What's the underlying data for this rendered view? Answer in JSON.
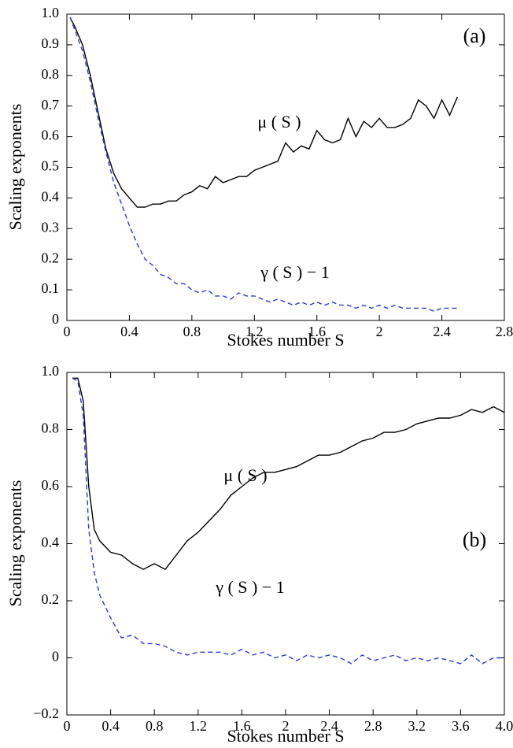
{
  "chart_data": [
    {
      "type": "line",
      "panel_label": "(a)",
      "xlabel": "Stokes number S",
      "ylabel": "Scaling exponents",
      "xlim": [
        0,
        2.8
      ],
      "ylim": [
        0,
        1
      ],
      "xticks": [
        0,
        0.4,
        0.8,
        1.2,
        1.6,
        2.0,
        2.4,
        2.8
      ],
      "yticks": [
        0,
        0.1,
        0.2,
        0.3,
        0.4,
        0.5,
        0.6,
        0.7,
        0.8,
        0.9,
        {
          "value": 1,
          "label": "1.0"
        }
      ],
      "x": [
        0.02,
        0.05,
        0.1,
        0.15,
        0.2,
        0.25,
        0.3,
        0.35,
        0.4,
        0.45,
        0.5,
        0.55,
        0.6,
        0.65,
        0.7,
        0.75,
        0.8,
        0.85,
        0.9,
        0.95,
        1.0,
        1.05,
        1.1,
        1.15,
        1.2,
        1.25,
        1.3,
        1.35,
        1.4,
        1.45,
        1.5,
        1.55,
        1.6,
        1.65,
        1.7,
        1.75,
        1.8,
        1.85,
        1.9,
        1.95,
        2.0,
        2.05,
        2.1,
        2.15,
        2.2,
        2.25,
        2.3,
        2.35,
        2.4,
        2.45,
        2.5
      ],
      "series": [
        {
          "name": "μ ( S )",
          "color": "#000000",
          "dash": false,
          "values": [
            0.99,
            0.96,
            0.9,
            0.8,
            0.68,
            0.56,
            0.48,
            0.43,
            0.4,
            0.37,
            0.37,
            0.38,
            0.38,
            0.39,
            0.39,
            0.41,
            0.42,
            0.44,
            0.43,
            0.47,
            0.45,
            0.46,
            0.47,
            0.47,
            0.49,
            0.5,
            0.51,
            0.52,
            0.58,
            0.55,
            0.57,
            0.56,
            0.62,
            0.59,
            0.58,
            0.59,
            0.66,
            0.6,
            0.65,
            0.63,
            0.66,
            0.63,
            0.63,
            0.64,
            0.66,
            0.72,
            0.7,
            0.66,
            0.72,
            0.67,
            0.73
          ]
        },
        {
          "name": "γ ( S ) − 1",
          "color": "#2a3ad6",
          "dash": true,
          "values": [
            0.99,
            0.95,
            0.88,
            0.78,
            0.66,
            0.55,
            0.45,
            0.38,
            0.31,
            0.25,
            0.2,
            0.18,
            0.15,
            0.14,
            0.12,
            0.12,
            0.1,
            0.09,
            0.1,
            0.08,
            0.08,
            0.07,
            0.09,
            0.08,
            0.08,
            0.07,
            0.06,
            0.07,
            0.06,
            0.05,
            0.06,
            0.05,
            0.06,
            0.05,
            0.06,
            0.05,
            0.05,
            0.04,
            0.05,
            0.04,
            0.05,
            0.04,
            0.05,
            0.04,
            0.04,
            0.04,
            0.04,
            0.03,
            0.04,
            0.04,
            0.04
          ]
        }
      ]
    },
    {
      "type": "line",
      "panel_label": "(b)",
      "xlabel": "Stokes number S",
      "ylabel": "Scaling exponents",
      "xlim": [
        0,
        4
      ],
      "ylim": [
        -0.2,
        1
      ],
      "xticks": [
        0,
        0.4,
        0.8,
        1.2,
        1.6,
        2.0,
        2.4,
        2.8,
        3.2,
        3.6,
        {
          "value": 4,
          "label": "4.0"
        }
      ],
      "yticks": [
        {
          "value": -0.2,
          "label": "−0.2"
        },
        0,
        0.2,
        0.4,
        0.6,
        0.8,
        {
          "value": 1,
          "label": "1.0"
        }
      ],
      "x": [
        0.05,
        0.1,
        0.15,
        0.2,
        0.25,
        0.3,
        0.4,
        0.5,
        0.6,
        0.7,
        0.8,
        0.9,
        1.0,
        1.1,
        1.2,
        1.3,
        1.4,
        1.5,
        1.6,
        1.7,
        1.8,
        1.9,
        2.0,
        2.1,
        2.2,
        2.3,
        2.4,
        2.5,
        2.6,
        2.7,
        2.8,
        2.9,
        3.0,
        3.1,
        3.2,
        3.3,
        3.4,
        3.5,
        3.6,
        3.7,
        3.8,
        3.9,
        4.0
      ],
      "series": [
        {
          "name": "μ ( S )",
          "color": "#000000",
          "dash": false,
          "values": [
            0.98,
            0.98,
            0.9,
            0.6,
            0.45,
            0.41,
            0.37,
            0.36,
            0.33,
            0.31,
            0.33,
            0.31,
            0.36,
            0.41,
            0.44,
            0.48,
            0.52,
            0.57,
            0.6,
            0.63,
            0.65,
            0.65,
            0.66,
            0.67,
            0.69,
            0.71,
            0.71,
            0.72,
            0.74,
            0.76,
            0.77,
            0.79,
            0.79,
            0.8,
            0.82,
            0.83,
            0.84,
            0.84,
            0.85,
            0.87,
            0.86,
            0.88,
            0.86
          ]
        },
        {
          "name": "γ ( S ) − 1",
          "color": "#2a3ad6",
          "dash": true,
          "values": [
            0.98,
            0.97,
            0.85,
            0.45,
            0.3,
            0.22,
            0.14,
            0.07,
            0.08,
            0.05,
            0.05,
            0.04,
            0.02,
            0.01,
            0.02,
            0.02,
            0.02,
            0.01,
            0.03,
            0.01,
            0.02,
            0.0,
            0.01,
            -0.01,
            0.01,
            0.0,
            0.01,
            0.0,
            -0.02,
            0.01,
            -0.01,
            0.0,
            0.01,
            -0.01,
            0.0,
            -0.01,
            0.0,
            -0.01,
            -0.02,
            0.01,
            -0.02,
            0.0,
            0.0
          ]
        }
      ]
    }
  ]
}
